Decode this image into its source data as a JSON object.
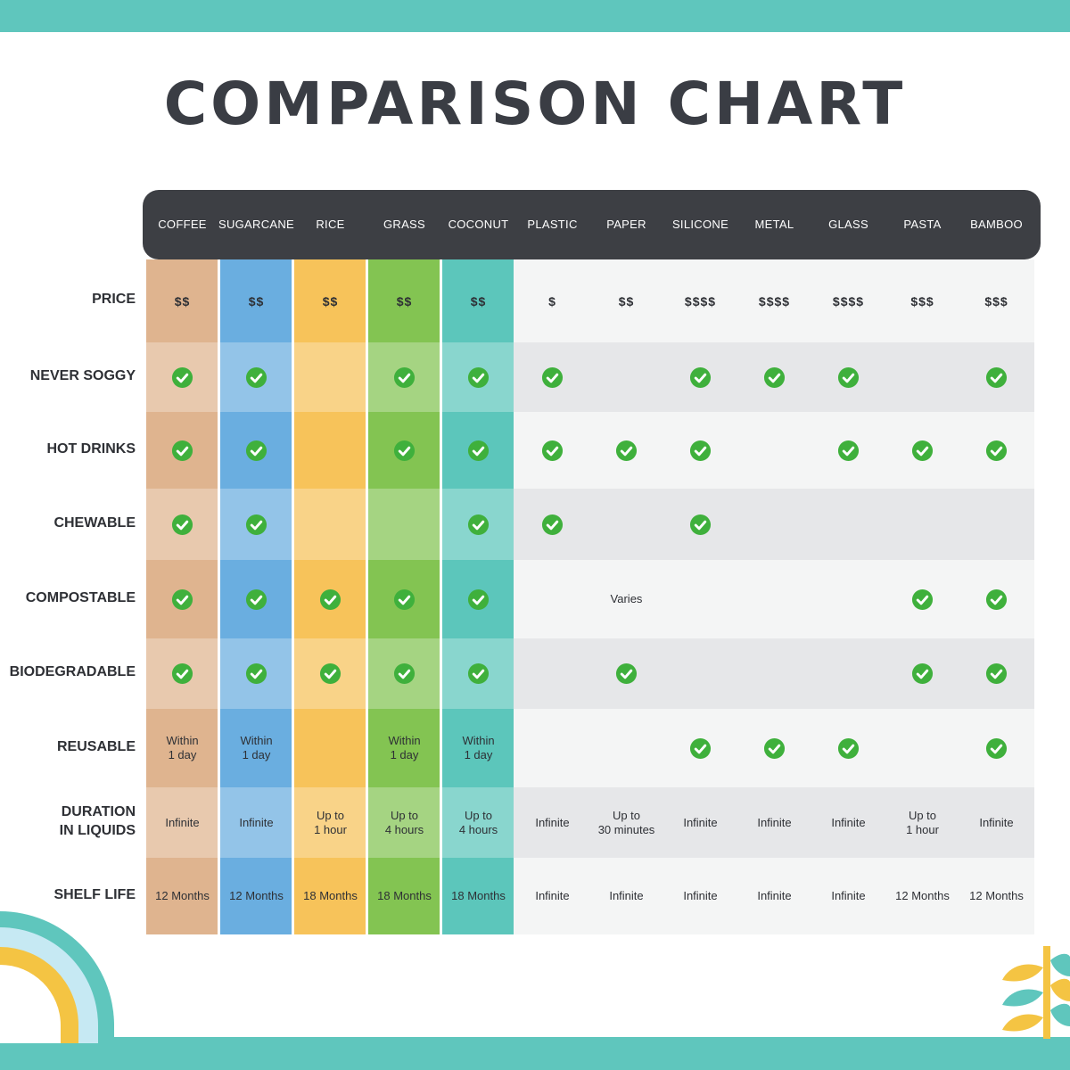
{
  "title": "COMPARISON CHART",
  "colors": {
    "frame": "#5fc6bd",
    "header_bar": "#3d3f44",
    "check": "#3fb03c",
    "row_light": "#f4f5f5",
    "row_dark": "#e6e7e9",
    "row_label_text": "#2e3035",
    "columns": {
      "COFFEE": "#dfb48f",
      "SUGARCANE": "#6aaee0",
      "RICE": "#f7c35a",
      "GRASS": "#83c452",
      "COCONUT": "#5cc6bb"
    }
  },
  "chart_data": {
    "type": "table",
    "title": "COMPARISON CHART",
    "columns": [
      "COFFEE",
      "SUGARCANE",
      "RICE",
      "GRASS",
      "COCONUT",
      "PLASTIC",
      "PAPER",
      "SILICONE",
      "METAL",
      "GLASS",
      "PASTA",
      "BAMBOO"
    ],
    "rows": [
      {
        "label": "PRICE",
        "values": [
          "$$",
          "$$",
          "$$",
          "$$",
          "$$",
          "$",
          "$$",
          "$$$$",
          "$$$$",
          "$$$$",
          "$$$",
          "$$$"
        ]
      },
      {
        "label": "NEVER SOGGY",
        "values": [
          true,
          true,
          false,
          true,
          true,
          true,
          false,
          true,
          true,
          true,
          false,
          true
        ]
      },
      {
        "label": "HOT DRINKS",
        "values": [
          true,
          true,
          false,
          true,
          true,
          true,
          true,
          true,
          false,
          true,
          true,
          true
        ]
      },
      {
        "label": "CHEWABLE",
        "values": [
          true,
          true,
          false,
          false,
          true,
          true,
          false,
          true,
          false,
          false,
          false,
          false
        ]
      },
      {
        "label": "COMPOSTABLE",
        "values": [
          true,
          true,
          true,
          true,
          true,
          false,
          "Varies",
          false,
          false,
          false,
          true,
          true
        ]
      },
      {
        "label": "BIODEGRADABLE",
        "values": [
          true,
          true,
          true,
          true,
          true,
          false,
          true,
          false,
          false,
          false,
          true,
          true
        ]
      },
      {
        "label": "REUSABLE",
        "values": [
          "Within\n1 day",
          "Within\n1 day",
          false,
          "Within\n1 day",
          "Within\n1 day",
          false,
          false,
          true,
          true,
          true,
          false,
          true
        ]
      },
      {
        "label": "DURATION\nIN LIQUIDS",
        "values": [
          "Infinite",
          "Infinite",
          "Up to\n1 hour",
          "Up to\n4 hours",
          "Up to\n4 hours",
          "Infinite",
          "Up to\n30 minutes",
          "Infinite",
          "Infinite",
          "Infinite",
          "Up to\n1 hour",
          "Infinite"
        ]
      },
      {
        "label": "SHELF LIFE",
        "values": [
          "12 Months",
          "12 Months",
          "18 Months",
          "18 Months",
          "18 Months",
          "Infinite",
          "Infinite",
          "Infinite",
          "Infinite",
          "Infinite",
          "12 Months",
          "12 Months"
        ]
      }
    ]
  }
}
